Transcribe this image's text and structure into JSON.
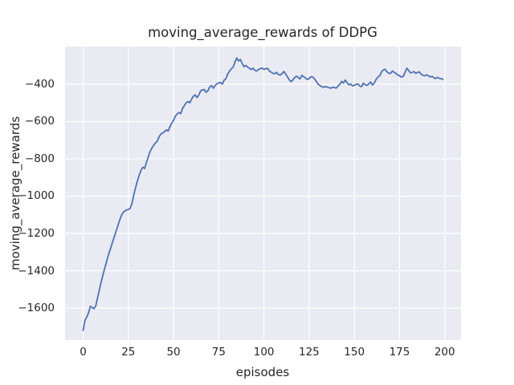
{
  "figure": {
    "colors": {
      "figure_bg": "#ffffff",
      "axes_bg": "#eaeaf2",
      "grid": "#ffffff",
      "line": "#4c72b0",
      "text": "#262626"
    }
  },
  "chart_data": {
    "type": "line",
    "title": "moving_average_rewards of DDPG",
    "xlabel": "episodes",
    "ylabel": "moving_average_rewards",
    "legend": null,
    "grid": true,
    "xlim": [
      -10,
      209
    ],
    "ylim": [
      -1771.5,
      -198.5
    ],
    "x_ticks": [
      0,
      25,
      50,
      75,
      100,
      125,
      150,
      175,
      200
    ],
    "x_tick_labels": [
      "0",
      "25",
      "50",
      "75",
      "100",
      "125",
      "150",
      "175",
      "200"
    ],
    "y_ticks": [
      -400,
      -600,
      -800,
      -1000,
      -1200,
      -1400,
      -1600
    ],
    "y_tick_labels": [
      "−400",
      "−600",
      "−800",
      "−1000",
      "−1200",
      "−1400",
      "−1600"
    ],
    "series": [
      {
        "name": "moving_average_rewards",
        "color": "#4c72b0",
        "points": [
          [
            0,
            -1720
          ],
          [
            1,
            -1665
          ],
          [
            2,
            -1648
          ],
          [
            3,
            -1625
          ],
          [
            4,
            -1590
          ],
          [
            5,
            -1598
          ],
          [
            6,
            -1603
          ],
          [
            7,
            -1588
          ],
          [
            8,
            -1545
          ],
          [
            9,
            -1500
          ],
          [
            10,
            -1460
          ],
          [
            11,
            -1420
          ],
          [
            12,
            -1385
          ],
          [
            13,
            -1350
          ],
          [
            14,
            -1315
          ],
          [
            15,
            -1285
          ],
          [
            16,
            -1255
          ],
          [
            17,
            -1225
          ],
          [
            18,
            -1195
          ],
          [
            19,
            -1165
          ],
          [
            20,
            -1135
          ],
          [
            21,
            -1108
          ],
          [
            22,
            -1090
          ],
          [
            23,
            -1080
          ],
          [
            24,
            -1075
          ],
          [
            25,
            -1072
          ],
          [
            26,
            -1066
          ],
          [
            27,
            -1040
          ],
          [
            28,
            -995
          ],
          [
            29,
            -955
          ],
          [
            30,
            -920
          ],
          [
            31,
            -888
          ],
          [
            32,
            -862
          ],
          [
            33,
            -845
          ],
          [
            34,
            -852
          ],
          [
            35,
            -820
          ],
          [
            36,
            -790
          ],
          [
            37,
            -762
          ],
          [
            38,
            -742
          ],
          [
            39,
            -728
          ],
          [
            40,
            -715
          ],
          [
            41,
            -705
          ],
          [
            42,
            -682
          ],
          [
            43,
            -668
          ],
          [
            44,
            -662
          ],
          [
            45,
            -655
          ],
          [
            46,
            -645
          ],
          [
            47,
            -652
          ],
          [
            48,
            -628
          ],
          [
            49,
            -610
          ],
          [
            50,
            -594
          ],
          [
            51,
            -572
          ],
          [
            52,
            -560
          ],
          [
            53,
            -552
          ],
          [
            54,
            -558
          ],
          [
            55,
            -530
          ],
          [
            56,
            -515
          ],
          [
            57,
            -500
          ],
          [
            58,
            -493
          ],
          [
            59,
            -500
          ],
          [
            60,
            -480
          ],
          [
            61,
            -465
          ],
          [
            62,
            -458
          ],
          [
            63,
            -472
          ],
          [
            64,
            -458
          ],
          [
            65,
            -436
          ],
          [
            66,
            -431
          ],
          [
            67,
            -429
          ],
          [
            68,
            -444
          ],
          [
            69,
            -436
          ],
          [
            70,
            -415
          ],
          [
            71,
            -408
          ],
          [
            72,
            -422
          ],
          [
            73,
            -408
          ],
          [
            74,
            -398
          ],
          [
            75,
            -393
          ],
          [
            76,
            -391
          ],
          [
            77,
            -400
          ],
          [
            78,
            -379
          ],
          [
            79,
            -370
          ],
          [
            80,
            -345
          ],
          [
            81,
            -330
          ],
          [
            82,
            -318
          ],
          [
            83,
            -308
          ],
          [
            84,
            -282
          ],
          [
            85,
            -260
          ],
          [
            86,
            -276
          ],
          [
            87,
            -268
          ],
          [
            88,
            -290
          ],
          [
            89,
            -307
          ],
          [
            90,
            -300
          ],
          [
            91,
            -309
          ],
          [
            92,
            -315
          ],
          [
            93,
            -322
          ],
          [
            94,
            -314
          ],
          [
            95,
            -326
          ],
          [
            96,
            -330
          ],
          [
            97,
            -322
          ],
          [
            98,
            -317
          ],
          [
            99,
            -314
          ],
          [
            100,
            -321
          ],
          [
            101,
            -317
          ],
          [
            102,
            -315
          ],
          [
            103,
            -329
          ],
          [
            104,
            -336
          ],
          [
            105,
            -342
          ],
          [
            106,
            -344
          ],
          [
            107,
            -337
          ],
          [
            108,
            -349
          ],
          [
            109,
            -351
          ],
          [
            110,
            -344
          ],
          [
            111,
            -332
          ],
          [
            112,
            -346
          ],
          [
            113,
            -361
          ],
          [
            114,
            -376
          ],
          [
            115,
            -387
          ],
          [
            116,
            -378
          ],
          [
            117,
            -365
          ],
          [
            118,
            -357
          ],
          [
            119,
            -365
          ],
          [
            120,
            -372
          ],
          [
            121,
            -353
          ],
          [
            122,
            -360
          ],
          [
            123,
            -368
          ],
          [
            124,
            -375
          ],
          [
            125,
            -370
          ],
          [
            126,
            -360
          ],
          [
            127,
            -362
          ],
          [
            128,
            -372
          ],
          [
            129,
            -386
          ],
          [
            130,
            -400
          ],
          [
            131,
            -408
          ],
          [
            132,
            -414
          ],
          [
            133,
            -417
          ],
          [
            134,
            -413
          ],
          [
            135,
            -416
          ],
          [
            136,
            -419
          ],
          [
            137,
            -422
          ],
          [
            138,
            -417
          ],
          [
            139,
            -419
          ],
          [
            140,
            -421
          ],
          [
            141,
            -411
          ],
          [
            142,
            -401
          ],
          [
            143,
            -385
          ],
          [
            144,
            -394
          ],
          [
            145,
            -378
          ],
          [
            146,
            -392
          ],
          [
            147,
            -404
          ],
          [
            148,
            -399
          ],
          [
            149,
            -410
          ],
          [
            150,
            -406
          ],
          [
            151,
            -402
          ],
          [
            152,
            -399
          ],
          [
            153,
            -410
          ],
          [
            154,
            -414
          ],
          [
            155,
            -395
          ],
          [
            156,
            -403
          ],
          [
            157,
            -407
          ],
          [
            158,
            -399
          ],
          [
            159,
            -388
          ],
          [
            160,
            -405
          ],
          [
            161,
            -395
          ],
          [
            162,
            -375
          ],
          [
            163,
            -363
          ],
          [
            164,
            -356
          ],
          [
            165,
            -335
          ],
          [
            166,
            -324
          ],
          [
            167,
            -320
          ],
          [
            168,
            -334
          ],
          [
            169,
            -341
          ],
          [
            170,
            -343
          ],
          [
            171,
            -330
          ],
          [
            172,
            -336
          ],
          [
            173,
            -343
          ],
          [
            174,
            -351
          ],
          [
            175,
            -355
          ],
          [
            176,
            -362
          ],
          [
            177,
            -359
          ],
          [
            178,
            -339
          ],
          [
            179,
            -315
          ],
          [
            180,
            -326
          ],
          [
            181,
            -340
          ],
          [
            182,
            -337
          ],
          [
            183,
            -333
          ],
          [
            184,
            -342
          ],
          [
            185,
            -337
          ],
          [
            186,
            -335
          ],
          [
            187,
            -347
          ],
          [
            188,
            -353
          ],
          [
            189,
            -356
          ],
          [
            190,
            -350
          ],
          [
            191,
            -355
          ],
          [
            192,
            -362
          ],
          [
            193,
            -358
          ],
          [
            194,
            -366
          ],
          [
            195,
            -370
          ],
          [
            196,
            -364
          ],
          [
            197,
            -369
          ],
          [
            198,
            -371
          ],
          [
            199,
            -375
          ]
        ]
      }
    ]
  }
}
